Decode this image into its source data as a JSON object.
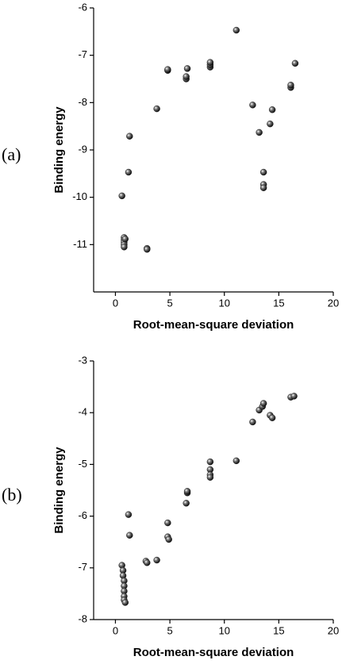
{
  "chart_data": [
    {
      "type": "scatter",
      "panel": "(a)",
      "x_label": "Root-mean-square deviation",
      "y_label": "Binding energy",
      "xlim": [
        -2,
        20
      ],
      "xticks": [
        0,
        5,
        10,
        15,
        20
      ],
      "ylim": [
        -12,
        -6
      ],
      "yticks": [
        -6,
        -7,
        -8,
        -9,
        -10,
        -11
      ],
      "color": "#111111",
      "x": [
        0.6,
        0.8,
        0.8,
        0.8,
        0.8,
        0.8,
        0.9,
        1.2,
        1.3,
        2.9,
        2.9,
        3.8,
        4.8,
        4.8,
        6.5,
        6.5,
        6.6,
        8.7,
        8.7,
        8.7,
        11.1,
        12.6,
        13.2,
        13.6,
        13.6,
        13.6,
        14.2,
        14.4,
        16.1,
        16.1,
        16.5
      ],
      "values": [
        -9.97,
        -10.85,
        -10.9,
        -10.95,
        -11.0,
        -11.05,
        -10.88,
        -9.47,
        -8.71,
        -11.08,
        -11.1,
        -8.13,
        -7.32,
        -7.3,
        -7.5,
        -7.45,
        -7.28,
        -7.25,
        -7.2,
        -7.15,
        -6.47,
        -8.05,
        -8.63,
        -9.47,
        -9.73,
        -9.8,
        -8.45,
        -8.15,
        -7.68,
        -7.63,
        -7.17
      ]
    },
    {
      "type": "scatter",
      "panel": "(b)",
      "x_label": "Root-mean-square deviation",
      "y_label": "Binding energy",
      "xlim": [
        -2,
        20
      ],
      "xticks": [
        0,
        5,
        10,
        15,
        20
      ],
      "ylim": [
        -8,
        -3
      ],
      "yticks": [
        -3,
        -4,
        -5,
        -6,
        -7,
        -8
      ],
      "color": "#111111",
      "x": [
        0.6,
        0.7,
        0.7,
        0.8,
        0.8,
        0.8,
        0.8,
        0.8,
        0.9,
        1.2,
        1.3,
        2.8,
        2.9,
        3.8,
        4.8,
        4.8,
        4.9,
        6.5,
        6.6,
        6.6,
        8.7,
        8.7,
        8.7,
        8.7,
        11.1,
        12.6,
        13.2,
        13.5,
        13.6,
        14.2,
        14.4,
        16.1,
        16.4
      ],
      "values": [
        -6.95,
        -7.05,
        -7.15,
        -7.25,
        -7.35,
        -7.45,
        -7.55,
        -7.62,
        -7.67,
        -5.97,
        -6.37,
        -6.87,
        -6.9,
        -6.85,
        -6.13,
        -6.4,
        -6.45,
        -5.75,
        -5.55,
        -5.52,
        -4.95,
        -5.1,
        -5.2,
        -5.25,
        -4.93,
        -4.18,
        -3.95,
        -3.88,
        -3.82,
        -4.05,
        -4.1,
        -3.7,
        -3.68
      ]
    }
  ]
}
